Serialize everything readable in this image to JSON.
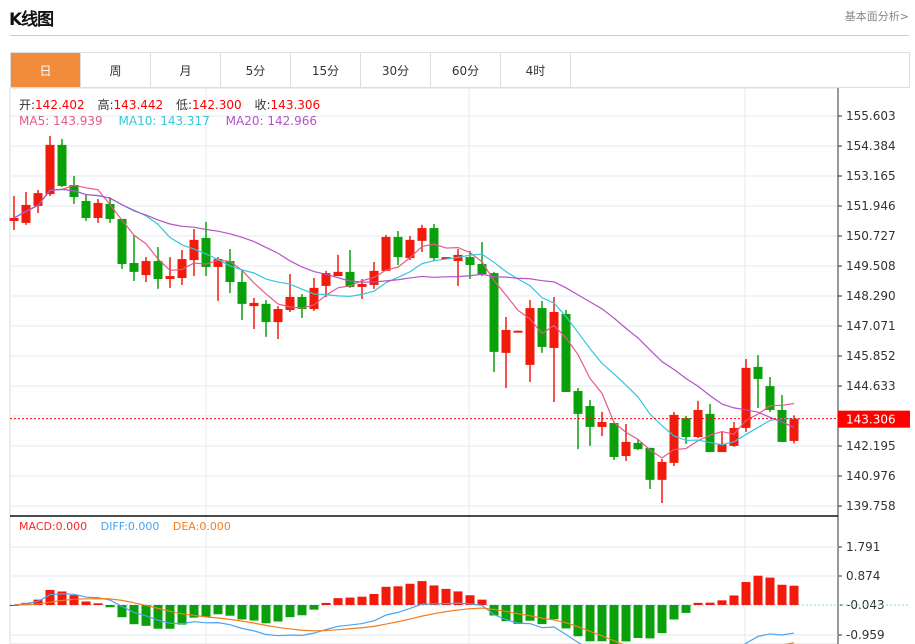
{
  "header": {
    "title": "K线图",
    "link": "基本面分析>"
  },
  "tabs": [
    {
      "label": "日",
      "active": true
    },
    {
      "label": "周"
    },
    {
      "label": "月"
    },
    {
      "label": "5分"
    },
    {
      "label": "15分"
    },
    {
      "label": "30分"
    },
    {
      "label": "60分"
    },
    {
      "label": "4时"
    }
  ],
  "ohlc": {
    "open_label": "开:",
    "open": "142.402",
    "high_label": "高:",
    "high": "143.442",
    "low_label": "低:",
    "low": "142.300",
    "close_label": "收:",
    "close": "143.306"
  },
  "ma": {
    "ma5": "MA5: 143.939",
    "ma10": "MA10: 143.317",
    "ma20": "MA20: 142.966"
  },
  "macd_info": {
    "macd": "MACD:0.000",
    "diff": "DIFF:0.000",
    "dea": "DEA:0.000"
  },
  "current_price": "143.306",
  "colors": {
    "up": "#f21a0a",
    "down": "#0aa00a",
    "ma5": "#e8588a",
    "ma10": "#36c6dc",
    "ma20": "#b452c8",
    "diff": "#4aa3f0",
    "dea": "#f57c20",
    "accent": "#f08c3c"
  },
  "chart_data": {
    "type": "candlestick",
    "price_axis": {
      "ticks": [
        "155.603",
        "154.384",
        "153.165",
        "151.946",
        "150.727",
        "149.508",
        "148.290",
        "147.071",
        "145.852",
        "144.633",
        "143.414",
        "142.195",
        "140.976",
        "139.758"
      ],
      "range": [
        139.758,
        155.603
      ]
    },
    "macd_axis": {
      "ticks": [
        "1.791",
        "0.874",
        "-0.043",
        "-0.959"
      ]
    },
    "candles": [
      [
        151.34,
        151.46,
        152.35,
        150.97
      ],
      [
        151.26,
        151.99,
        152.52,
        151.18
      ],
      [
        151.95,
        152.47,
        152.6,
        151.66
      ],
      [
        152.43,
        154.43,
        154.79,
        152.35
      ],
      [
        154.43,
        152.76,
        154.67,
        152.72
      ],
      [
        152.8,
        152.31,
        153.17,
        152.03
      ],
      [
        152.15,
        151.46,
        152.39,
        151.34
      ],
      [
        151.46,
        152.07,
        152.23,
        151.26
      ],
      [
        152.03,
        151.42,
        152.31,
        151.26
      ],
      [
        151.42,
        149.59,
        151.42,
        149.39
      ],
      [
        149.63,
        149.27,
        150.77,
        148.9
      ],
      [
        149.14,
        149.71,
        149.87,
        148.86
      ],
      [
        149.71,
        148.98,
        150.28,
        148.58
      ],
      [
        148.98,
        149.1,
        149.87,
        148.62
      ],
      [
        149.02,
        149.79,
        150.16,
        148.74
      ],
      [
        149.75,
        150.57,
        151.01,
        149.1
      ],
      [
        150.65,
        149.47,
        151.3,
        149.1
      ],
      [
        149.47,
        149.79,
        149.87,
        148.09
      ],
      [
        149.71,
        148.86,
        150.2,
        148.41
      ],
      [
        148.86,
        147.97,
        149.35,
        147.32
      ],
      [
        147.88,
        148.01,
        148.21,
        146.95
      ],
      [
        147.97,
        147.23,
        148.13,
        146.63
      ],
      [
        147.23,
        147.76,
        147.88,
        146.54
      ],
      [
        147.72,
        148.25,
        149.18,
        147.64
      ],
      [
        148.25,
        147.76,
        148.37,
        147.4
      ],
      [
        147.76,
        148.62,
        149.02,
        147.68
      ],
      [
        148.7,
        149.22,
        149.31,
        148.25
      ],
      [
        149.1,
        149.27,
        149.96,
        149.1
      ],
      [
        149.27,
        148.66,
        150.16,
        148.62
      ],
      [
        148.66,
        148.78,
        148.98,
        148.17
      ],
      [
        148.74,
        149.31,
        149.67,
        148.58
      ],
      [
        149.31,
        150.69,
        150.77,
        149.31
      ],
      [
        150.69,
        149.87,
        150.93,
        149.55
      ],
      [
        149.83,
        150.57,
        150.73,
        149.75
      ],
      [
        150.53,
        151.05,
        151.18,
        150.08
      ],
      [
        151.05,
        149.83,
        151.22,
        149.71
      ],
      [
        149.85,
        149.87,
        149.87,
        149.83
      ],
      [
        149.71,
        149.96,
        150.2,
        148.7
      ],
      [
        149.87,
        149.55,
        150.12,
        148.98
      ],
      [
        149.59,
        149.18,
        150.48,
        149.1
      ],
      [
        149.22,
        146.02,
        149.27,
        145.2
      ],
      [
        145.98,
        146.91,
        147.44,
        144.55
      ],
      [
        146.86,
        146.88,
        146.88,
        146.86
      ],
      [
        145.49,
        147.8,
        148.13,
        144.8
      ],
      [
        147.8,
        146.22,
        148.09,
        145.98
      ],
      [
        146.18,
        147.64,
        148.25,
        143.98
      ],
      [
        147.56,
        144.39,
        147.72,
        144.39
      ],
      [
        144.43,
        143.5,
        144.55,
        142.07
      ],
      [
        143.82,
        142.97,
        144.07,
        142.2
      ],
      [
        142.97,
        143.17,
        143.58,
        142.6
      ],
      [
        143.13,
        141.75,
        143.13,
        141.63
      ],
      [
        141.79,
        142.36,
        143.09,
        141.59
      ],
      [
        142.32,
        142.07,
        142.48,
        142.03
      ],
      [
        142.12,
        140.82,
        142.12,
        140.45
      ],
      [
        140.82,
        141.55,
        141.67,
        139.88
      ],
      [
        141.51,
        143.46,
        143.58,
        141.38
      ],
      [
        143.33,
        142.56,
        143.42,
        142.28
      ],
      [
        142.56,
        143.66,
        144.03,
        142.52
      ],
      [
        143.5,
        141.95,
        143.9,
        141.95
      ],
      [
        141.95,
        142.28,
        142.77,
        141.95
      ],
      [
        142.2,
        142.93,
        143.17,
        142.16
      ],
      [
        142.93,
        145.37,
        145.73,
        142.77
      ],
      [
        145.41,
        144.92,
        145.89,
        143.74
      ],
      [
        144.63,
        143.66,
        145.0,
        143.58
      ],
      [
        143.66,
        142.36,
        144.27,
        142.36
      ],
      [
        142.402,
        143.306,
        143.442,
        142.3
      ]
    ]
  }
}
